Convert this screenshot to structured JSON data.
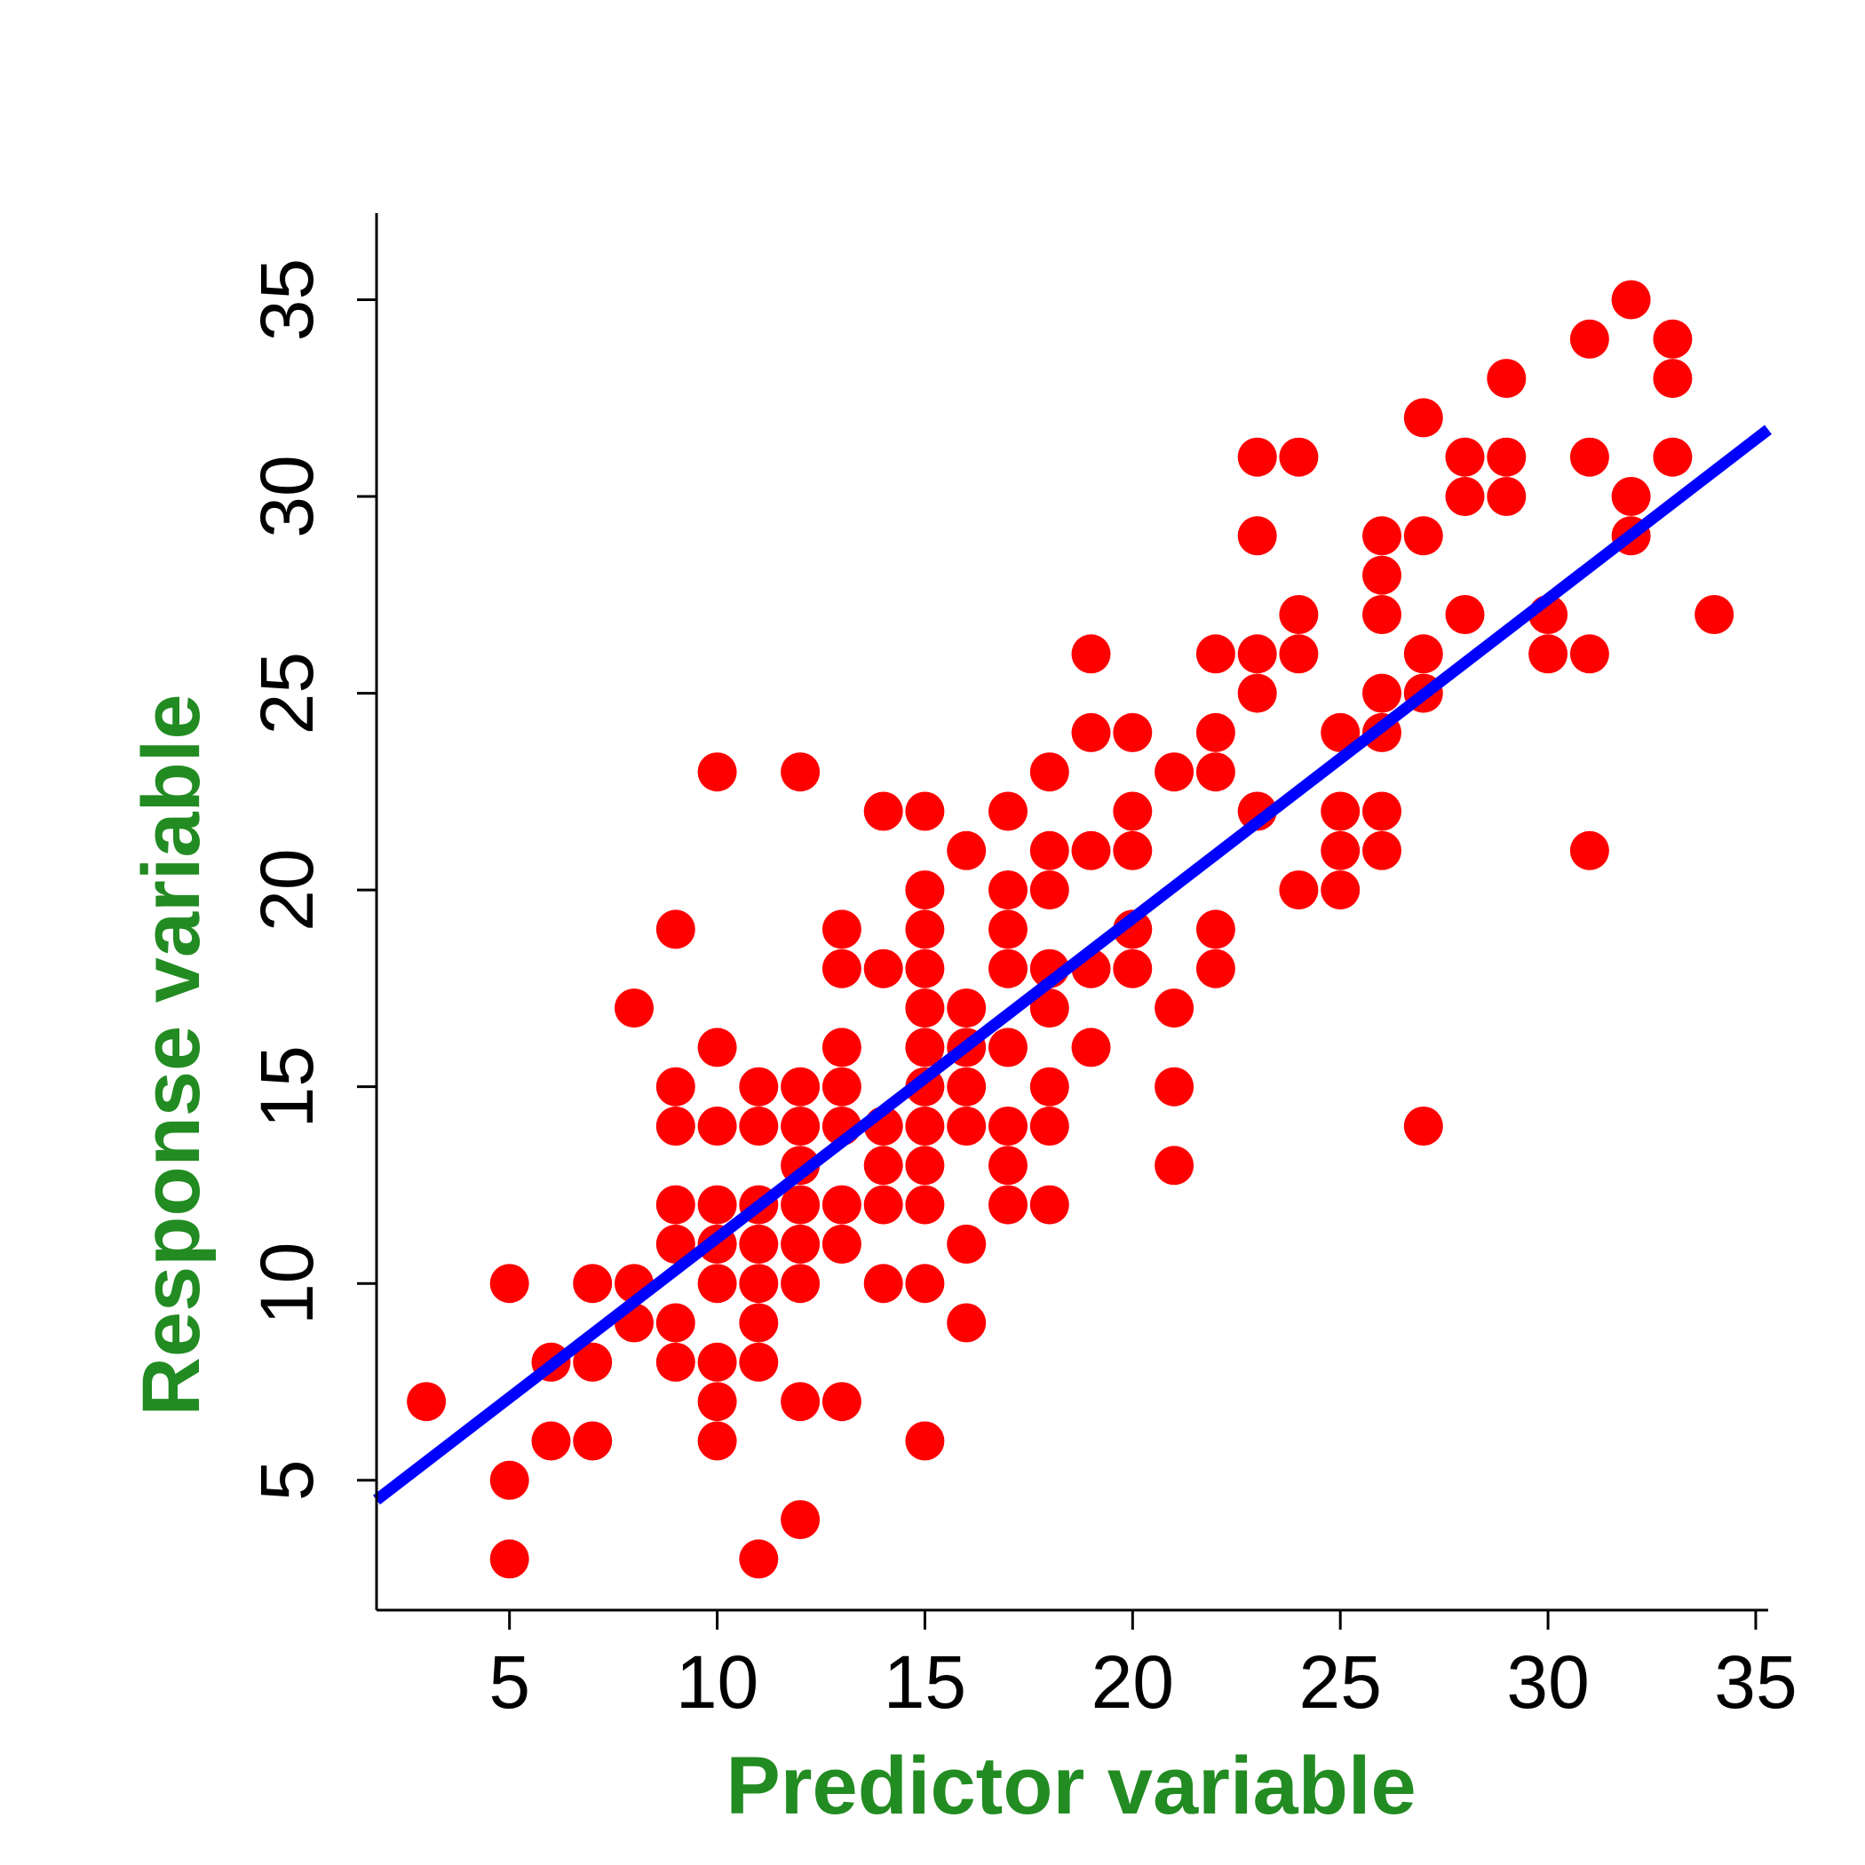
{
  "chart_data": {
    "type": "scatter",
    "xlabel": "Predictor variable",
    "ylabel": "Response variable",
    "xlim": [
      1.8,
      35.3
    ],
    "ylim": [
      1.7,
      37.2
    ],
    "xticks": [
      5,
      10,
      15,
      20,
      25,
      30,
      35
    ],
    "yticks": [
      5,
      10,
      15,
      20,
      25,
      30,
      35
    ],
    "grid": false,
    "colors": {
      "points": "#ff0000",
      "fit_line": "#0000ff",
      "axis_titles": "#228b22",
      "axes": "#000000"
    },
    "points": [
      [
        3,
        7
      ],
      [
        5,
        10
      ],
      [
        5,
        5
      ],
      [
        5,
        3
      ],
      [
        6,
        8
      ],
      [
        6,
        6
      ],
      [
        7,
        10
      ],
      [
        7,
        8
      ],
      [
        7,
        6
      ],
      [
        8,
        17
      ],
      [
        8,
        10
      ],
      [
        8,
        9
      ],
      [
        9,
        19
      ],
      [
        9,
        15
      ],
      [
        9,
        14
      ],
      [
        9,
        12
      ],
      [
        9,
        11
      ],
      [
        9,
        9
      ],
      [
        9,
        8
      ],
      [
        10,
        23
      ],
      [
        10,
        16
      ],
      [
        10,
        14
      ],
      [
        10,
        12
      ],
      [
        10,
        11
      ],
      [
        10,
        10
      ],
      [
        10,
        8
      ],
      [
        10,
        7
      ],
      [
        10,
        6
      ],
      [
        11,
        15
      ],
      [
        11,
        14
      ],
      [
        11,
        12
      ],
      [
        11,
        11
      ],
      [
        11,
        10
      ],
      [
        11,
        9
      ],
      [
        11,
        8
      ],
      [
        11,
        3
      ],
      [
        12,
        23
      ],
      [
        12,
        15
      ],
      [
        12,
        14
      ],
      [
        12,
        13
      ],
      [
        12,
        12
      ],
      [
        12,
        11
      ],
      [
        12,
        10
      ],
      [
        12,
        7
      ],
      [
        12,
        4
      ],
      [
        13,
        19
      ],
      [
        13,
        18
      ],
      [
        13,
        16
      ],
      [
        13,
        15
      ],
      [
        13,
        14
      ],
      [
        13,
        12
      ],
      [
        13,
        11
      ],
      [
        13,
        7
      ],
      [
        14,
        22
      ],
      [
        14,
        18
      ],
      [
        14,
        14
      ],
      [
        14,
        13
      ],
      [
        14,
        12
      ],
      [
        14,
        10
      ],
      [
        15,
        22
      ],
      [
        15,
        20
      ],
      [
        15,
        19
      ],
      [
        15,
        18
      ],
      [
        15,
        17
      ],
      [
        15,
        16
      ],
      [
        15,
        15
      ],
      [
        15,
        14
      ],
      [
        15,
        13
      ],
      [
        15,
        12
      ],
      [
        15,
        10
      ],
      [
        15,
        6
      ],
      [
        16,
        21
      ],
      [
        16,
        17
      ],
      [
        16,
        16
      ],
      [
        16,
        15
      ],
      [
        16,
        14
      ],
      [
        16,
        11
      ],
      [
        16,
        9
      ],
      [
        17,
        22
      ],
      [
        17,
        20
      ],
      [
        17,
        19
      ],
      [
        17,
        18
      ],
      [
        17,
        16
      ],
      [
        17,
        14
      ],
      [
        17,
        13
      ],
      [
        17,
        12
      ],
      [
        18,
        23
      ],
      [
        18,
        21
      ],
      [
        18,
        20
      ],
      [
        18,
        18
      ],
      [
        18,
        17
      ],
      [
        18,
        15
      ],
      [
        18,
        14
      ],
      [
        18,
        12
      ],
      [
        19,
        26
      ],
      [
        19,
        24
      ],
      [
        19,
        21
      ],
      [
        19,
        18
      ],
      [
        19,
        16
      ],
      [
        20,
        24
      ],
      [
        20,
        22
      ],
      [
        20,
        21
      ],
      [
        20,
        19
      ],
      [
        20,
        18
      ],
      [
        21,
        23
      ],
      [
        21,
        17
      ],
      [
        21,
        15
      ],
      [
        21,
        13
      ],
      [
        22,
        26
      ],
      [
        22,
        24
      ],
      [
        22,
        23
      ],
      [
        22,
        19
      ],
      [
        22,
        18
      ],
      [
        23,
        31
      ],
      [
        23,
        29
      ],
      [
        23,
        26
      ],
      [
        23,
        25
      ],
      [
        23,
        22
      ],
      [
        24,
        31
      ],
      [
        24,
        27
      ],
      [
        24,
        26
      ],
      [
        24,
        20
      ],
      [
        25,
        24
      ],
      [
        25,
        22
      ],
      [
        25,
        21
      ],
      [
        25,
        20
      ],
      [
        26,
        29
      ],
      [
        26,
        28
      ],
      [
        26,
        27
      ],
      [
        26,
        25
      ],
      [
        26,
        24
      ],
      [
        26,
        22
      ],
      [
        26,
        21
      ],
      [
        27,
        32
      ],
      [
        27,
        29
      ],
      [
        27,
        26
      ],
      [
        27,
        25
      ],
      [
        27,
        14
      ],
      [
        28,
        31
      ],
      [
        28,
        30
      ],
      [
        28,
        27
      ],
      [
        29,
        33
      ],
      [
        29,
        31
      ],
      [
        29,
        30
      ],
      [
        30,
        27
      ],
      [
        30,
        26
      ],
      [
        31,
        34
      ],
      [
        31,
        31
      ],
      [
        31,
        26
      ],
      [
        31,
        21
      ],
      [
        32,
        35
      ],
      [
        32,
        30
      ],
      [
        32,
        29
      ],
      [
        33,
        34
      ],
      [
        33,
        33
      ],
      [
        33,
        31
      ],
      [
        34,
        27
      ]
    ],
    "fit_line": {
      "x": [
        1.8,
        35.3
      ],
      "y": [
        4.5,
        31.7
      ]
    }
  }
}
